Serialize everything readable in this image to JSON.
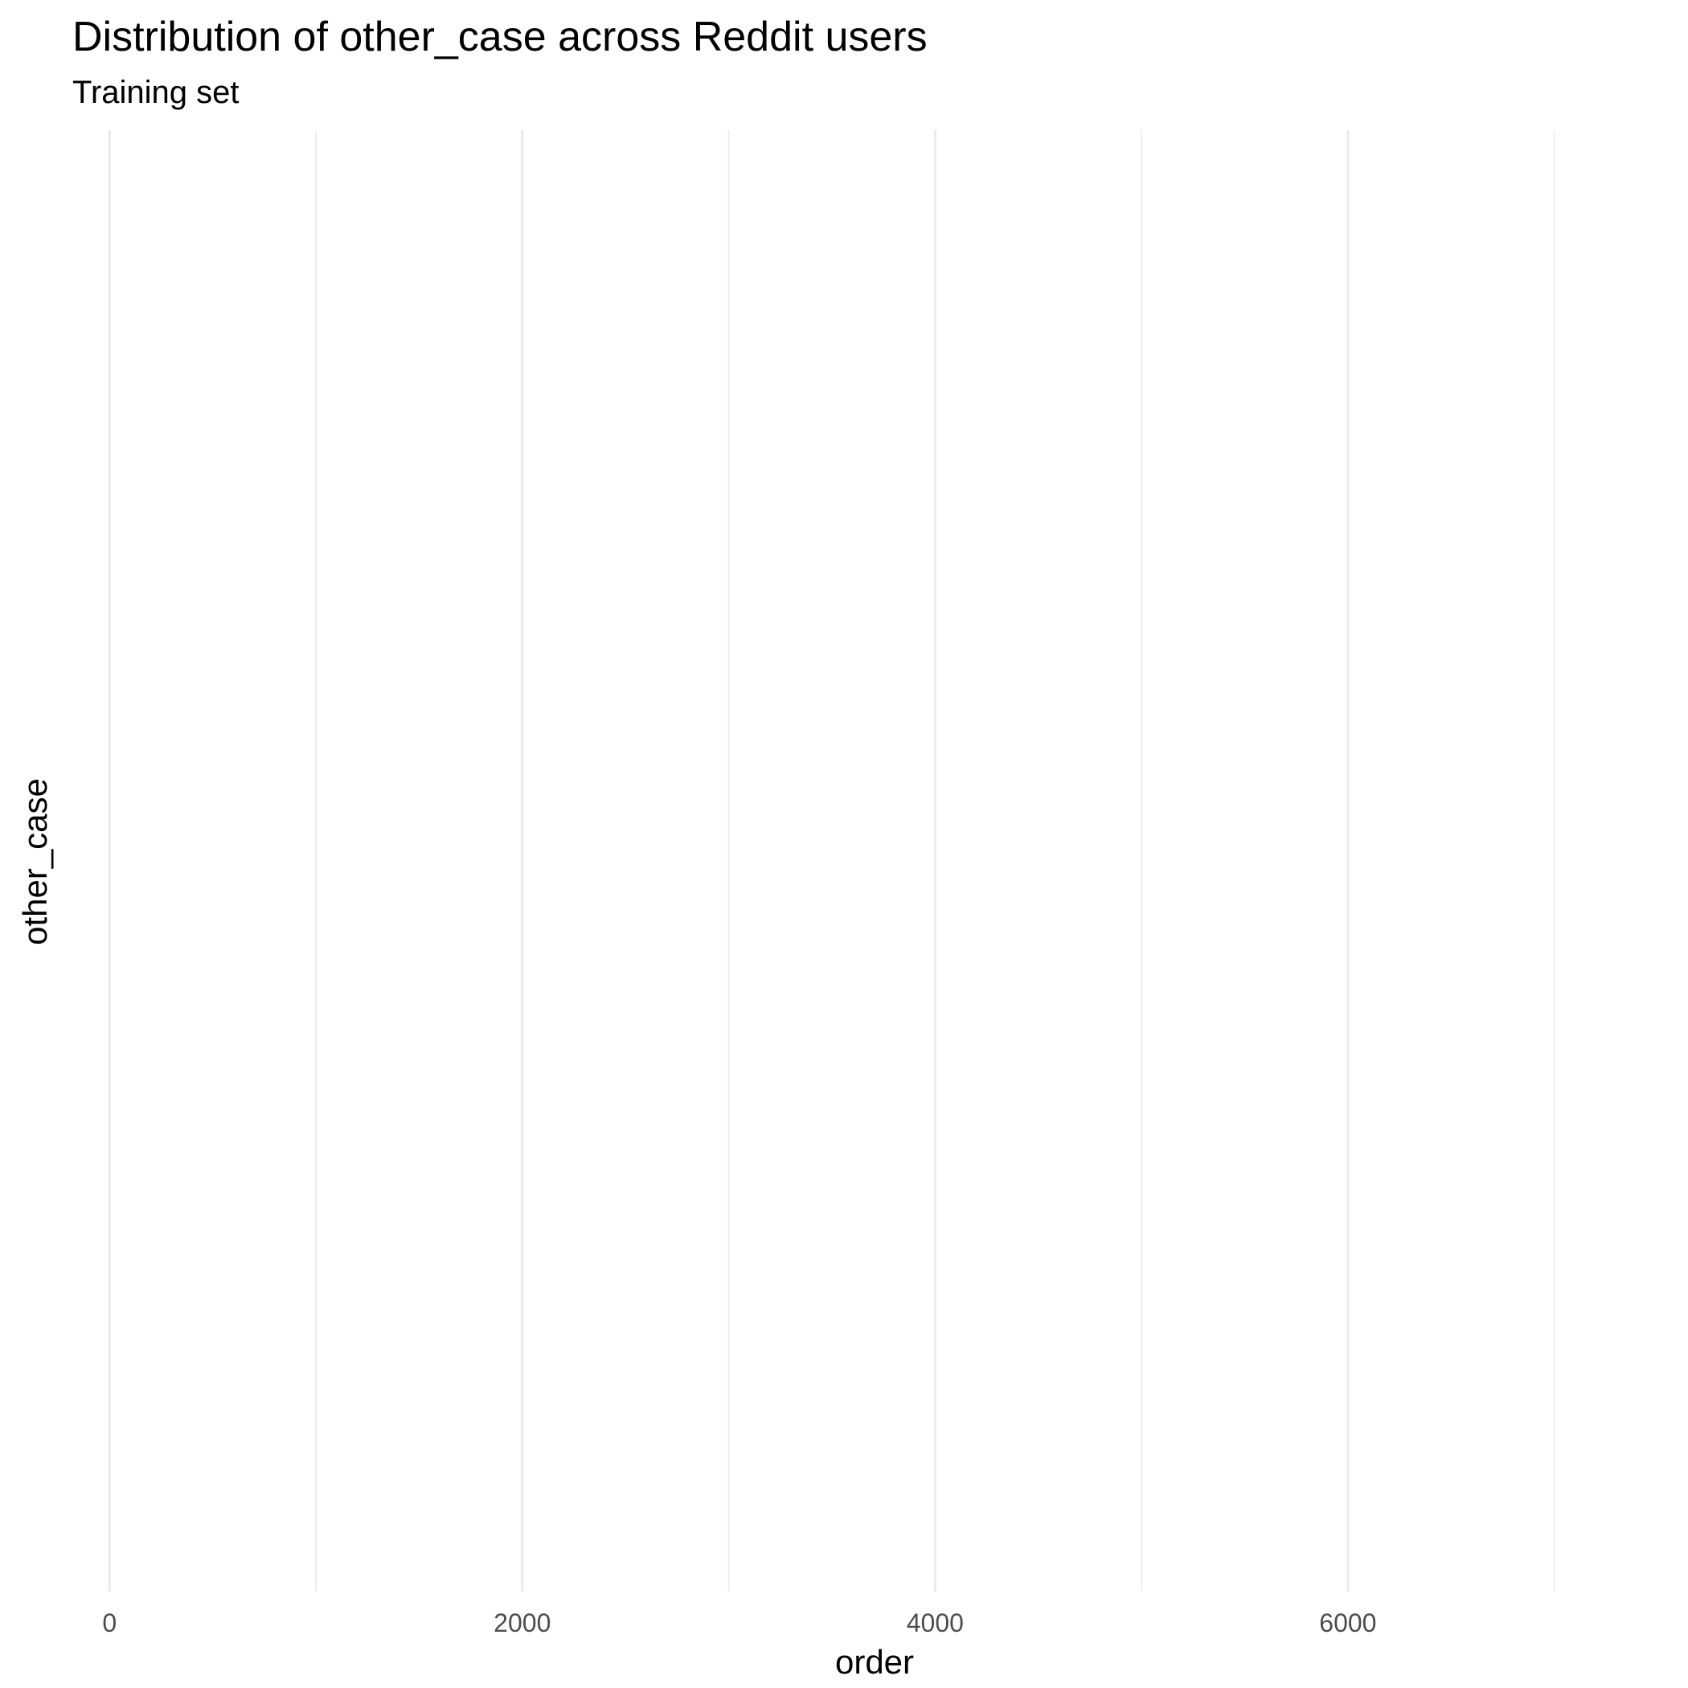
{
  "chart_data": {
    "type": "line",
    "title": "Distribution of other_case across Reddit users",
    "subtitle": "Training set",
    "xlabel": "order",
    "ylabel": "other_case",
    "xlim": [
      -180,
      7570
    ],
    "x_ticks": [
      0,
      2000,
      4000,
      6000
    ],
    "x_tick_labels": [
      "0",
      "2000",
      "4000",
      "6000"
    ],
    "x_minor_ticks": [
      1000,
      3000,
      5000,
      7000
    ],
    "y_ticks": [],
    "grid": true,
    "series": []
  }
}
